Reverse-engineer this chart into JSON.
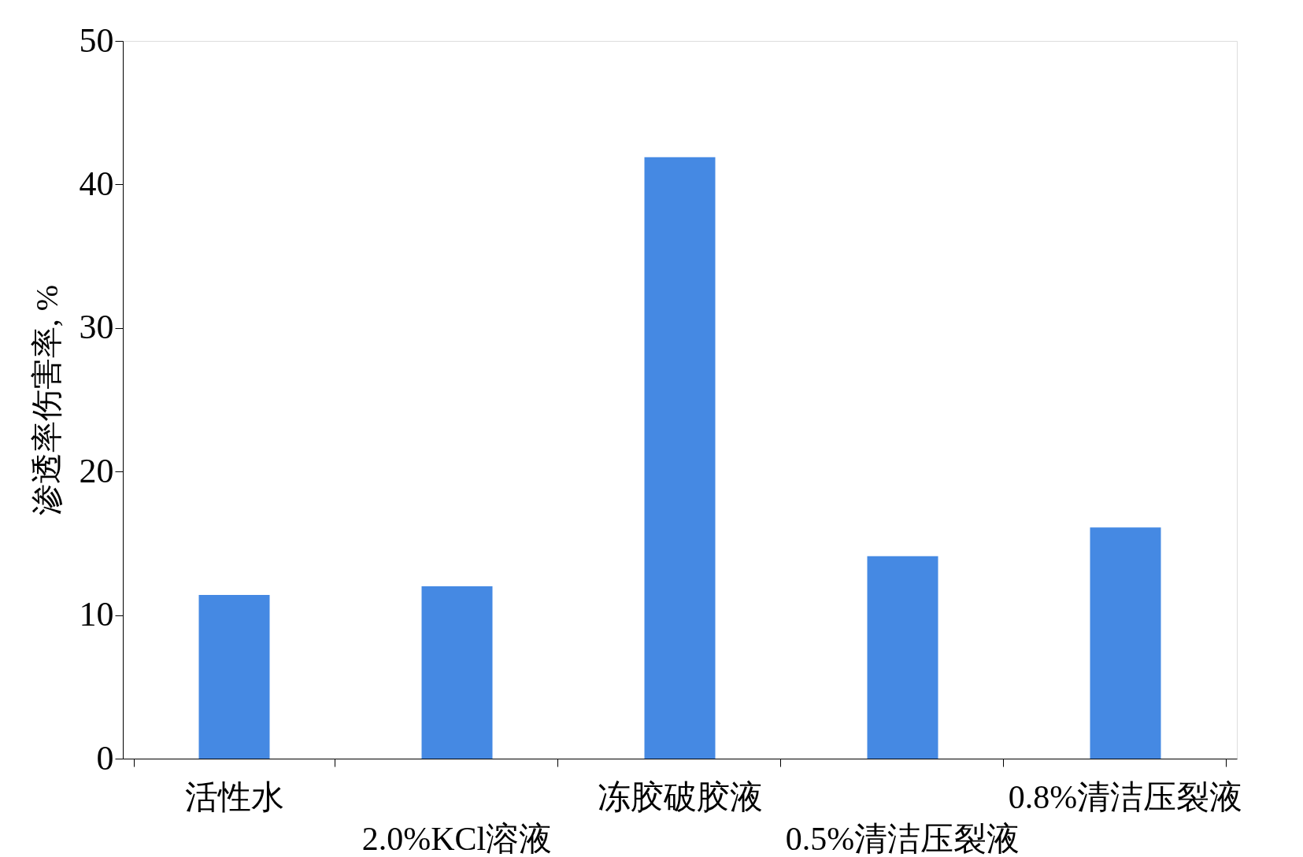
{
  "chart_data": {
    "type": "bar",
    "ylabel": "渗透率伤害率, %",
    "categories": [
      "活性水",
      "2.0%KCl溶液",
      "冻胶破胶液",
      "0.5%清洁压裂液",
      "0.8%清洁压裂液"
    ],
    "values": [
      11.4,
      12.0,
      41.9,
      14.1,
      16.1
    ],
    "color": "#4589e3",
    "ylim": [
      0,
      50
    ],
    "yticks": [
      0,
      10,
      20,
      30,
      40,
      50
    ],
    "grid": false
  }
}
